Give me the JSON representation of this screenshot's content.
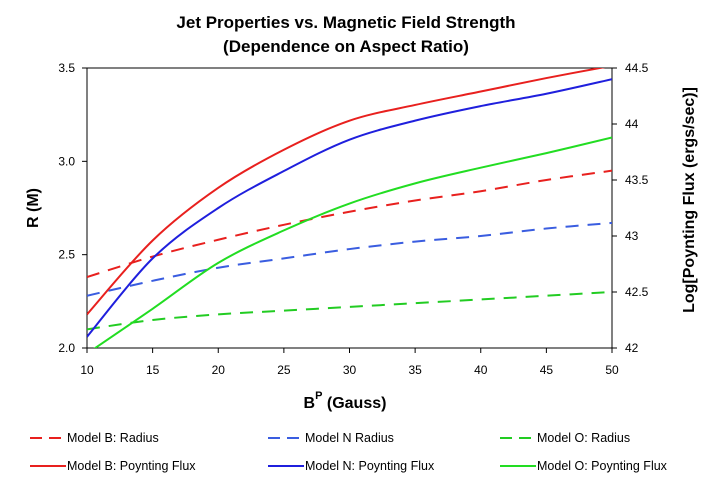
{
  "chart_data": {
    "type": "line",
    "title": "Jet Properties vs. Magnetic Field Strength",
    "subtitle": "(Dependence on Aspect Ratio)",
    "xlabel_main": "B",
    "xlabel_sup": "P",
    "xlabel_rest": " (Gauss)",
    "ylabel": "R (M)",
    "y2label": "Log[Poynting Flux (ergs/sec)]",
    "xlim": [
      10,
      50
    ],
    "ylim": [
      2.0,
      3.5
    ],
    "y2lim": [
      42,
      44.5
    ],
    "xticks": [
      "10",
      "15",
      "20",
      "25",
      "30",
      "35",
      "40",
      "45",
      "50"
    ],
    "yticks": [
      "2.0",
      "2.5",
      "3.0",
      "3.5"
    ],
    "y2ticks": [
      "42",
      "42.5",
      "43",
      "43.5",
      "44",
      "44.5"
    ],
    "x": [
      10,
      15,
      20,
      25,
      30,
      35,
      40,
      45,
      50
    ],
    "series": [
      {
        "name": "Model B: Radius",
        "axis": "left",
        "color": "#e8201e",
        "dash": true,
        "values": [
          2.38,
          2.49,
          2.58,
          2.66,
          2.73,
          2.79,
          2.84,
          2.9,
          2.95
        ]
      },
      {
        "name": "Model N Radius",
        "axis": "left",
        "color": "#3a5de0",
        "dash": true,
        "values": [
          2.28,
          2.36,
          2.43,
          2.48,
          2.53,
          2.57,
          2.6,
          2.64,
          2.67
        ]
      },
      {
        "name": "Model O: Radius",
        "axis": "left",
        "color": "#22cc22",
        "dash": true,
        "values": [
          2.1,
          2.15,
          2.18,
          2.2,
          2.22,
          2.24,
          2.26,
          2.28,
          2.3
        ]
      },
      {
        "name": "Model B: Poynting Flux",
        "axis": "right",
        "color": "#e8201e",
        "dash": false,
        "values": [
          42.3,
          42.96,
          43.43,
          43.77,
          44.03,
          44.17,
          44.29,
          44.41,
          44.52
        ]
      },
      {
        "name": "Model N: Poynting Flux",
        "axis": "right",
        "color": "#1f1fdd",
        "dash": false,
        "values": [
          42.1,
          42.8,
          43.25,
          43.58,
          43.86,
          44.03,
          44.16,
          44.27,
          44.4
        ]
      },
      {
        "name": "Model O: Poynting Flux",
        "axis": "right",
        "color": "#22dd22",
        "dash": false,
        "values": [
          41.95,
          42.35,
          42.76,
          43.05,
          43.29,
          43.47,
          43.61,
          43.74,
          43.88
        ]
      }
    ],
    "legend": {
      "placement": "bottom",
      "rows": [
        [
          "Model B: Radius",
          "Model N Radius",
          "Model O: Radius"
        ],
        [
          "Model B: Poynting Flux",
          "Model N: Poynting Flux",
          "Model O: Poynting Flux"
        ]
      ]
    }
  }
}
